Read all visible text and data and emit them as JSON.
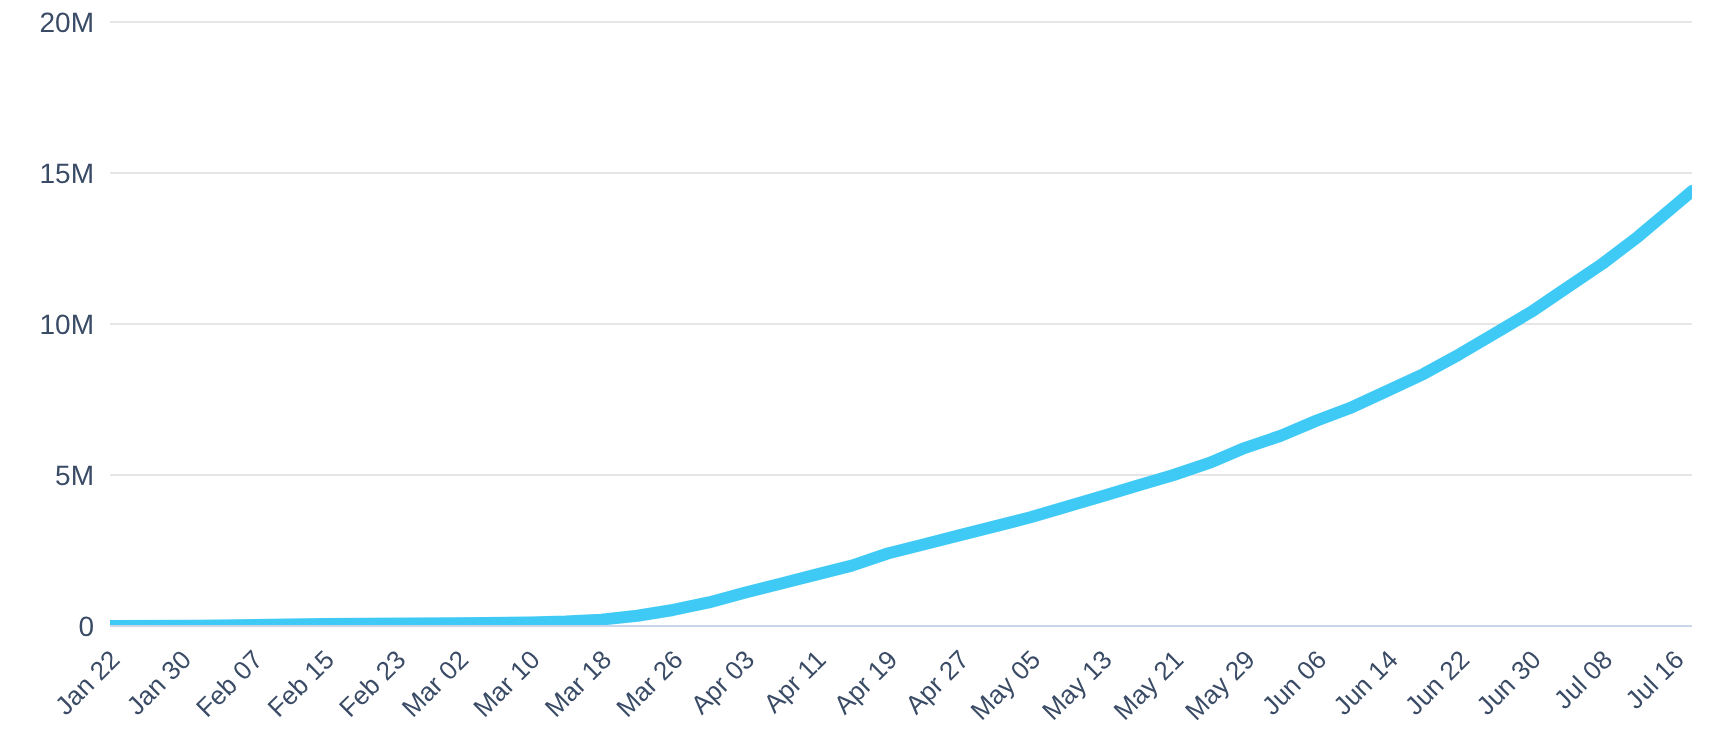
{
  "chart_data": {
    "type": "line",
    "x": [
      "--01-22",
      "--02-01",
      "--02-15",
      "--03-02",
      "--03-10",
      "--03-14",
      "--03-18",
      "--03-22",
      "--03-26",
      "--03-30",
      "--04-03",
      "--04-07",
      "--04-11",
      "--04-15",
      "--04-19",
      "--04-23",
      "--04-27",
      "--05-01",
      "--05-05",
      "--05-09",
      "--05-13",
      "--05-17",
      "--05-21",
      "--05-25",
      "--05-29",
      "--06-02",
      "--06-06",
      "--06-10",
      "--06-14",
      "--06-18",
      "--06-22",
      "--06-26",
      "--06-30",
      "--07-04",
      "--07-08",
      "--07-12",
      "--07-16",
      "--07-18"
    ],
    "series": [
      {
        "color": "#3fcaf5",
        "values": [
          0,
          10000,
          70000,
          90000,
          120000,
          150000,
          210000,
          340000,
          530000,
          780000,
          1100000,
          1400000,
          1700000,
          2000000,
          2400000,
          2700000,
          3000000,
          3300000,
          3600000,
          3950000,
          4300000,
          4650000,
          5000000,
          5400000,
          5900000,
          6300000,
          6800000,
          7250000,
          7800000,
          8350000,
          9000000,
          9700000,
          10400000,
          11200000,
          12000000,
          12900000,
          13900000,
          14400000
        ]
      }
    ],
    "xlim": [
      "--01-22",
      "--07-18"
    ],
    "xticks": [
      {
        "value": "--01-22",
        "label": "Jan 22"
      },
      {
        "value": "--01-30",
        "label": "Jan 30"
      },
      {
        "value": "--02-07",
        "label": "Feb 07"
      },
      {
        "value": "--02-15",
        "label": "Feb 15"
      },
      {
        "value": "--02-23",
        "label": "Feb 23"
      },
      {
        "value": "--03-02",
        "label": "Mar 02"
      },
      {
        "value": "--03-10",
        "label": "Mar 10"
      },
      {
        "value": "--03-18",
        "label": "Mar 18"
      },
      {
        "value": "--03-26",
        "label": "Mar 26"
      },
      {
        "value": "--04-03",
        "label": "Apr 03"
      },
      {
        "value": "--04-11",
        "label": "Apr 11"
      },
      {
        "value": "--04-19",
        "label": "Apr 19"
      },
      {
        "value": "--04-27",
        "label": "Apr 27"
      },
      {
        "value": "--05-05",
        "label": "May 05"
      },
      {
        "value": "--05-13",
        "label": "May 13"
      },
      {
        "value": "--05-21",
        "label": "May 21"
      },
      {
        "value": "--05-29",
        "label": "May 29"
      },
      {
        "value": "--06-06",
        "label": "Jun 06"
      },
      {
        "value": "--06-14",
        "label": "Jun 14"
      },
      {
        "value": "--06-22",
        "label": "Jun 22"
      },
      {
        "value": "--06-30",
        "label": "Jun 30"
      },
      {
        "value": "--07-08",
        "label": "Jul 08"
      },
      {
        "value": "--07-16",
        "label": "Jul 16"
      }
    ],
    "ylim": [
      0,
      20000000
    ],
    "yticks": [
      {
        "value": 0,
        "label": "0"
      },
      {
        "value": 5000000,
        "label": "5M"
      },
      {
        "value": 10000000,
        "label": "10M"
      },
      {
        "value": 15000000,
        "label": "15M"
      },
      {
        "value": 20000000,
        "label": "20M"
      }
    ],
    "grid": "y",
    "marker": "none",
    "line_style": "solid",
    "legend": false
  }
}
